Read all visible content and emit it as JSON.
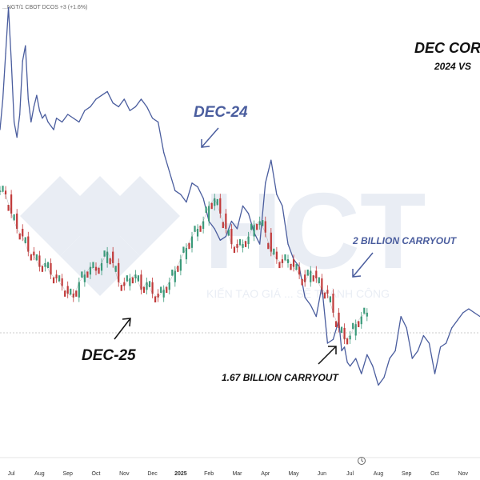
{
  "header_text": "...NGT/1 CBOT DCOS +3 (+1.6%)",
  "watermark": {
    "brand": "HCT",
    "slogan": "KIẾN TẠO GIÁ ... SẼ THÀNH CÔNG"
  },
  "colors": {
    "dec24": "#4a5d9e",
    "dec25_up": "#3a9a7a",
    "dec25_down": "#c23a3a",
    "annotation": "#4a5d9e",
    "annotation_dark": "#111111"
  },
  "chart_data": {
    "type": "line",
    "title": "DEC COR",
    "subtitle": "2024 VS",
    "x_ticks": [
      "Jul",
      "Aug",
      "Sep",
      "Oct",
      "Nov",
      "Dec",
      "2025",
      "Feb",
      "Mar",
      "Apr",
      "May",
      "Jun",
      "Jul",
      "Aug",
      "Sep",
      "Oct",
      "Nov"
    ],
    "x_range": [
      0,
      17
    ],
    "y_range": [
      0,
      600
    ],
    "series": [
      {
        "name": "DEC-24",
        "style": "line",
        "x": [
          0,
          0.1,
          0.2,
          0.3,
          0.4,
          0.5,
          0.6,
          0.7,
          0.8,
          0.9,
          1.0,
          1.1,
          1.2,
          1.3,
          1.4,
          1.5,
          1.6,
          1.7,
          1.8,
          1.9,
          2.0,
          2.2,
          2.4,
          2.6,
          2.8,
          3.0,
          3.2,
          3.4,
          3.6,
          3.8,
          4.0,
          4.2,
          4.4,
          4.6,
          4.8,
          5.0,
          5.2,
          5.4,
          5.6,
          5.8,
          6.0,
          6.2,
          6.4,
          6.6,
          6.8,
          7.0,
          7.2,
          7.4,
          7.6,
          7.8,
          8.0,
          8.2,
          8.4,
          8.6,
          8.8,
          9.0,
          9.2,
          9.4,
          9.6,
          9.8,
          10.0,
          10.2,
          10.4,
          10.6,
          10.8,
          11.0,
          11.2,
          11.4,
          11.6,
          11.8,
          12.0,
          12.1,
          12.2,
          12.3,
          12.4,
          12.6,
          12.8,
          13.0,
          13.2,
          13.4,
          13.6,
          13.8,
          14.0,
          14.2,
          14.4,
          14.6,
          14.8,
          15.0,
          15.2,
          15.4,
          15.6,
          15.8,
          16.0,
          16.2,
          16.4,
          16.6,
          16.8,
          17.0
        ],
        "y": [
          430,
          470,
          530,
          590,
          520,
          440,
          420,
          450,
          520,
          540,
          470,
          440,
          460,
          475,
          455,
          445,
          450,
          440,
          435,
          430,
          445,
          440,
          450,
          445,
          440,
          455,
          460,
          470,
          475,
          480,
          465,
          460,
          470,
          455,
          460,
          470,
          460,
          445,
          440,
          400,
          375,
          350,
          345,
          335,
          360,
          355,
          340,
          310,
          300,
          285,
          290,
          310,
          300,
          330,
          320,
          295,
          280,
          360,
          390,
          345,
          330,
          280,
          260,
          250,
          210,
          200,
          185,
          225,
          150,
          155,
          180,
          140,
          145,
          125,
          120,
          130,
          110,
          135,
          120,
          95,
          105,
          130,
          140,
          185,
          170,
          130,
          140,
          160,
          150,
          110,
          145,
          150,
          170,
          180,
          190,
          195,
          190,
          185
        ]
      },
      {
        "name": "DEC-25",
        "style": "candles",
        "x": [
          0,
          0.2,
          0.4,
          0.6,
          0.8,
          1.0,
          1.2,
          1.4,
          1.6,
          1.8,
          2.0,
          2.2,
          2.4,
          2.6,
          2.8,
          3.0,
          3.2,
          3.4,
          3.6,
          3.8,
          4.0,
          4.2,
          4.4,
          4.6,
          4.8,
          5.0,
          5.2,
          5.4,
          5.6,
          5.8,
          6.0,
          6.2,
          6.4,
          6.6,
          6.8,
          7.0,
          7.2,
          7.4,
          7.6,
          7.8,
          8.0,
          8.2,
          8.4,
          8.6,
          8.8,
          9.0,
          9.2,
          9.4,
          9.6,
          9.8,
          10.0,
          10.2,
          10.4,
          10.6,
          10.8,
          11.0,
          11.2,
          11.4,
          11.6,
          11.8,
          12.0,
          12.2,
          12.4,
          12.6,
          12.8,
          13.0
        ],
        "y": [
          350,
          345,
          320,
          300,
          290,
          270,
          265,
          250,
          255,
          240,
          235,
          225,
          215,
          210,
          230,
          240,
          250,
          245,
          255,
          270,
          255,
          230,
          225,
          235,
          240,
          220,
          230,
          215,
          210,
          220,
          230,
          245,
          260,
          275,
          290,
          300,
          310,
          330,
          340,
          320,
          300,
          280,
          275,
          280,
          290,
          305,
          310,
          295,
          270,
          260,
          255,
          260,
          250,
          240,
          230,
          245,
          235,
          220,
          215,
          190,
          170,
          155,
          160,
          175,
          185,
          190
        ]
      }
    ],
    "annotations": [
      {
        "text": "DEC-24"
      },
      {
        "text": "DEC-25"
      },
      {
        "text": "2 BILLION CARRYOUT"
      },
      {
        "text": "1.67 BILLION CARRYOUT"
      }
    ]
  }
}
